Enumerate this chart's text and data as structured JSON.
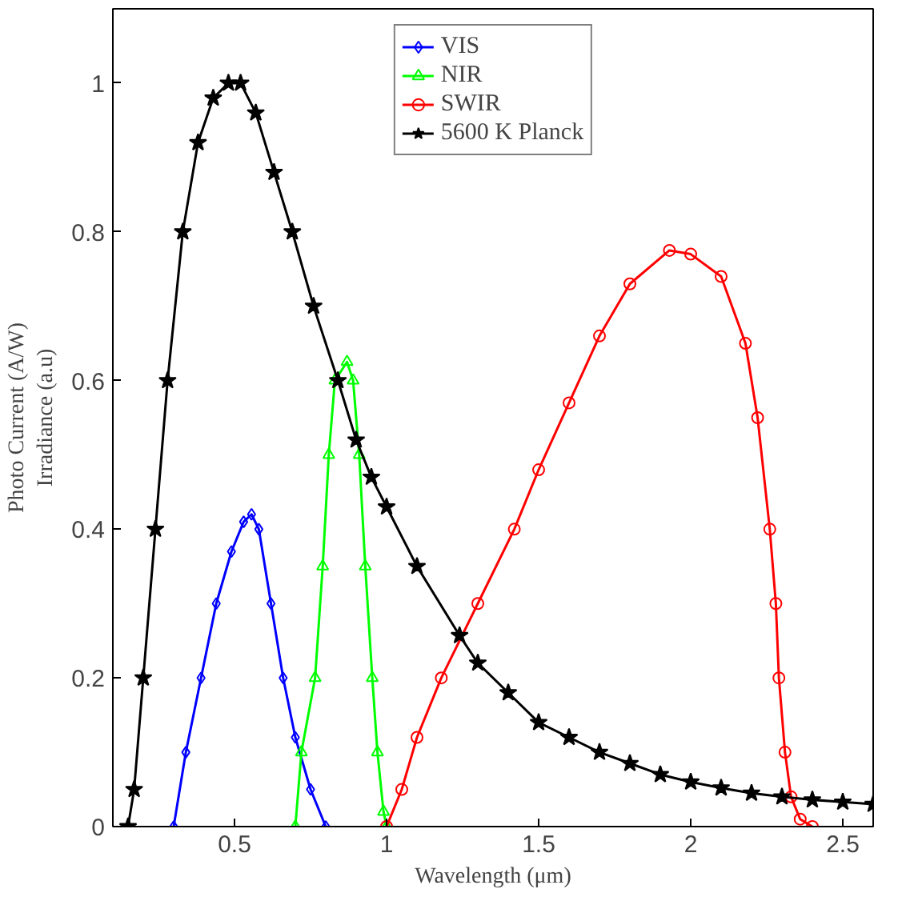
{
  "chart_data": {
    "type": "line",
    "xlabel": "Wavelength (μm)",
    "ylabel": "Photo Current (A/W)\nIrradiance (a.u)",
    "xlim": [
      0.1,
      2.6
    ],
    "ylim": [
      0,
      1.1
    ],
    "xticks": [
      0.5,
      1,
      1.5,
      2,
      2.5
    ],
    "yticks": [
      0,
      0.2,
      0.4,
      0.6,
      0.8,
      1
    ],
    "grid": false,
    "legend": "top",
    "series": [
      {
        "name": "VIS",
        "color": "#0000ff",
        "marker": "diamond",
        "x": [
          0.3,
          0.34,
          0.39,
          0.44,
          0.49,
          0.53,
          0.556,
          0.58,
          0.62,
          0.66,
          0.7,
          0.75,
          0.8
        ],
        "values": [
          0,
          0.1,
          0.2,
          0.3,
          0.37,
          0.41,
          0.42,
          0.4,
          0.3,
          0.2,
          0.12,
          0.05,
          0
        ]
      },
      {
        "name": "NIR",
        "color": "#00ff00",
        "marker": "triangle",
        "x": [
          0.7,
          0.72,
          0.765,
          0.79,
          0.81,
          0.83,
          0.87,
          0.89,
          0.91,
          0.93,
          0.953,
          0.97,
          0.99,
          1.0
        ],
        "values": [
          0,
          0.1,
          0.2,
          0.35,
          0.5,
          0.6,
          0.625,
          0.6,
          0.5,
          0.35,
          0.2,
          0.1,
          0.02,
          0
        ]
      },
      {
        "name": "SWIR",
        "color": "#ff0000",
        "marker": "circle",
        "x": [
          1.0,
          1.05,
          1.1,
          1.18,
          1.3,
          1.42,
          1.5,
          1.6,
          1.7,
          1.8,
          1.93,
          2.0,
          2.1,
          2.18,
          2.22,
          2.26,
          2.28,
          2.29,
          2.31,
          2.33,
          2.36,
          2.4
        ],
        "values": [
          0,
          0.05,
          0.12,
          0.2,
          0.3,
          0.4,
          0.48,
          0.57,
          0.66,
          0.73,
          0.775,
          0.77,
          0.74,
          0.65,
          0.55,
          0.4,
          0.3,
          0.2,
          0.1,
          0.04,
          0.01,
          0
        ]
      },
      {
        "name": "5600 K Planck",
        "color": "#000000",
        "marker": "star",
        "x": [
          0.15,
          0.17,
          0.2,
          0.24,
          0.28,
          0.33,
          0.38,
          0.43,
          0.48,
          0.52,
          0.57,
          0.63,
          0.69,
          0.76,
          0.84,
          0.9,
          0.95,
          1.0,
          1.1,
          1.24,
          1.3,
          1.4,
          1.5,
          1.6,
          1.7,
          1.8,
          1.9,
          2.0,
          2.1,
          2.2,
          2.3,
          2.4,
          2.5,
          2.6
        ],
        "values": [
          0,
          0.05,
          0.2,
          0.4,
          0.6,
          0.8,
          0.92,
          0.98,
          1.0,
          1.0,
          0.96,
          0.88,
          0.8,
          0.7,
          0.6,
          0.52,
          0.47,
          0.43,
          0.35,
          0.257,
          0.22,
          0.18,
          0.14,
          0.12,
          0.1,
          0.085,
          0.07,
          0.06,
          0.052,
          0.045,
          0.04,
          0.036,
          0.033,
          0.03
        ]
      }
    ]
  }
}
